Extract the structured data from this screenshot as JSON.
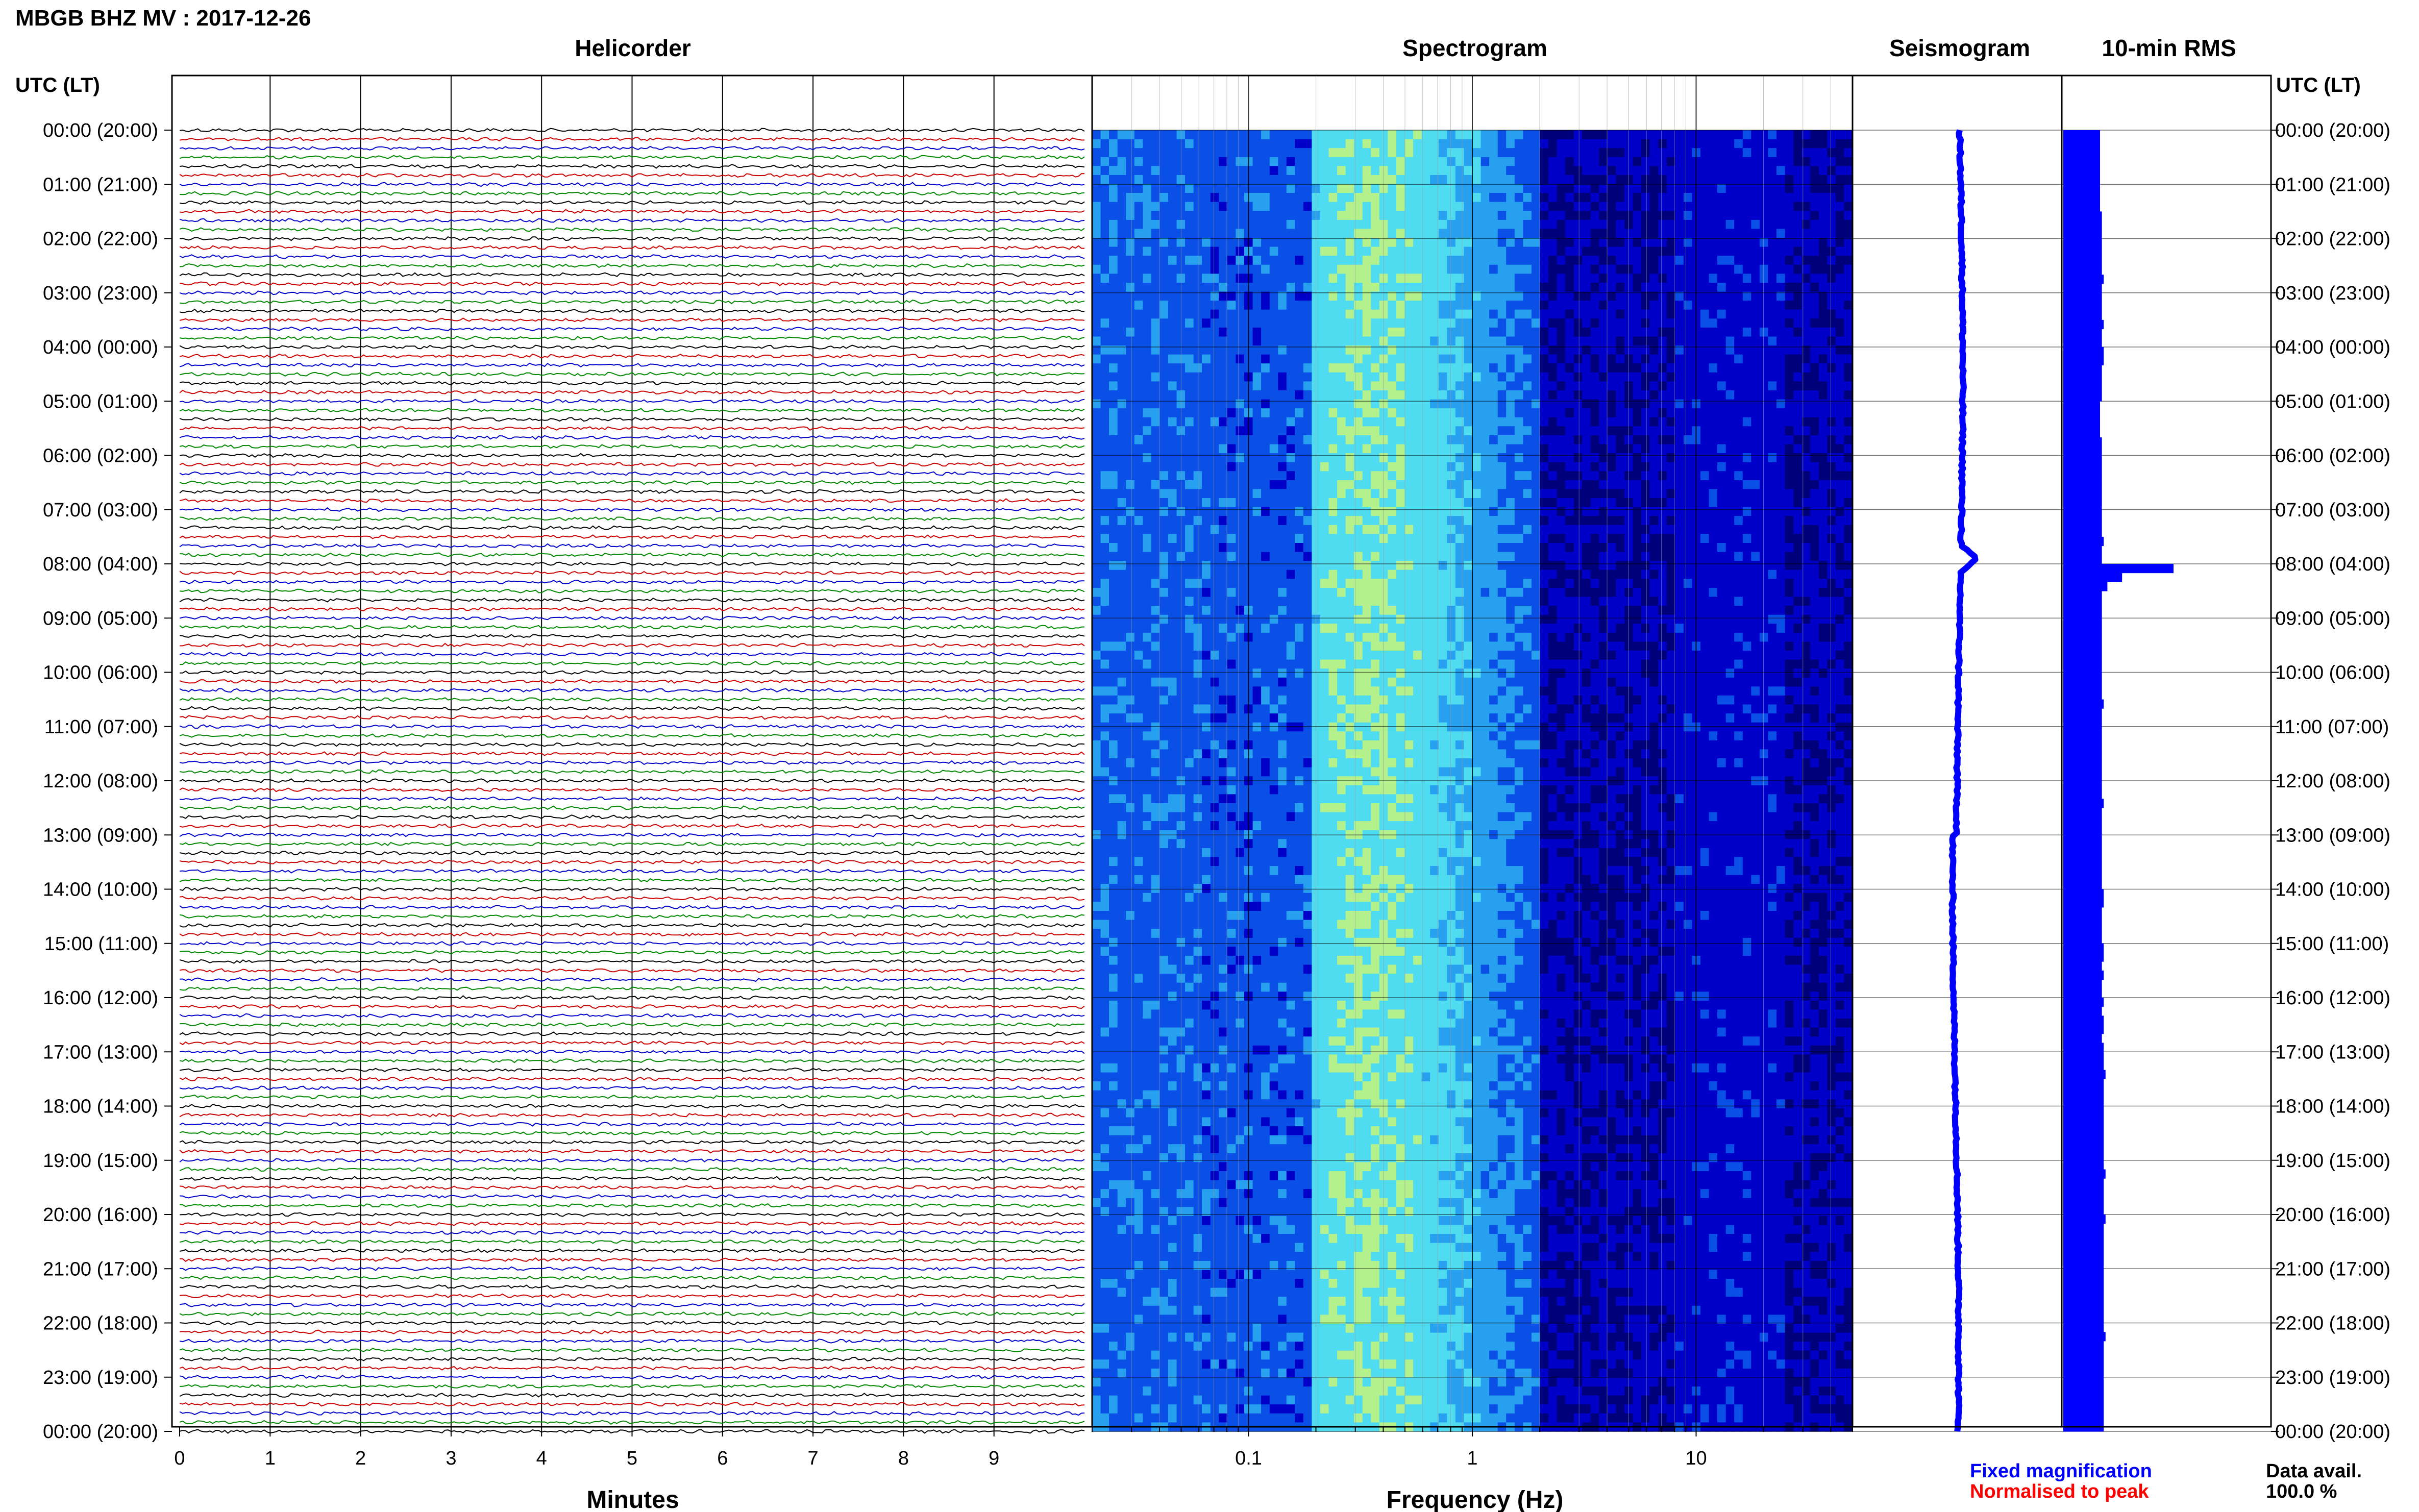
{
  "header": {
    "title": "MBGB BHZ MV : 2017-12-26",
    "left_axis_label": "UTC (LT)",
    "right_axis_label": "UTC (LT)"
  },
  "panels": {
    "helicorder": "Helicorder",
    "spectrogram": "Spectrogram",
    "seismogram": "Seismogram",
    "rms": "10-min RMS"
  },
  "footer": {
    "minutes_label": "Minutes",
    "frequency_label": "Frequency (Hz)",
    "legend_fixed": "Fixed magnification",
    "legend_normalised": "Normalised to peak",
    "data_avail_label": "Data avail.",
    "data_avail_value": "100.0 %"
  },
  "colors": {
    "trace_cycle": [
      "#000000",
      "#cc0000",
      "#0000cc",
      "#008800"
    ],
    "fixed": "#0000ff",
    "normalised": "#ff0000",
    "spectrogram_scale": [
      "#00007a",
      "#0000c8",
      "#0a50e6",
      "#28a0f0",
      "#50dcf0",
      "#b4f08c"
    ]
  },
  "chart_data": [
    {
      "type": "line",
      "title": "Helicorder",
      "xlabel": "Minutes",
      "x_ticks": [
        "0",
        "1",
        "2",
        "3",
        "4",
        "5",
        "6",
        "7",
        "8",
        "9"
      ],
      "xlim": [
        0,
        10
      ],
      "rows_per_hour": 6,
      "rows": 145,
      "y_ticks": [
        "00:00 (20:00)",
        "01:00 (21:00)",
        "02:00 (22:00)",
        "03:00 (23:00)",
        "04:00 (00:00)",
        "05:00 (01:00)",
        "06:00 (02:00)",
        "07:00 (03:00)",
        "08:00 (04:00)",
        "09:00 (05:00)",
        "10:00 (06:00)",
        "11:00 (07:00)",
        "12:00 (08:00)",
        "13:00 (09:00)",
        "14:00 (10:00)",
        "15:00 (11:00)",
        "16:00 (12:00)",
        "17:00 (13:00)",
        "18:00 (14:00)",
        "19:00 (15:00)",
        "20:00 (16:00)",
        "21:00 (17:00)",
        "22:00 (18:00)",
        "23:00 (19:00)",
        "00:00 (20:00)"
      ]
    },
    {
      "type": "heatmap",
      "title": "Spectrogram",
      "xlabel": "Frequency (Hz)",
      "x_scale": "log",
      "xlim": [
        0.02,
        50
      ],
      "x_ticks": [
        "0.1",
        "1",
        "10"
      ],
      "peak_band_hz": [
        0.2,
        0.8
      ]
    },
    {
      "type": "line",
      "title": "Seismogram",
      "note": "spike near 08:00 UTC"
    },
    {
      "type": "bar",
      "title": "10-min RMS",
      "orientation": "horizontal",
      "categories_per_hour": 6,
      "values": [
        1.0,
        1.0,
        1.0,
        1.0,
        1.0,
        1.0,
        1.0,
        1.0,
        1.0,
        1.05,
        1.05,
        1.05,
        1.05,
        1.05,
        1.05,
        1.05,
        1.1,
        1.05,
        1.05,
        1.05,
        1.05,
        1.1,
        1.05,
        1.05,
        1.1,
        1.1,
        1.05,
        1.05,
        1.05,
        1.05,
        1.0,
        1.0,
        1.0,
        1.0,
        1.05,
        1.05,
        1.05,
        1.05,
        1.05,
        1.05,
        1.05,
        1.05,
        1.05,
        1.05,
        1.05,
        1.1,
        1.05,
        1.05,
        3.0,
        1.6,
        1.2,
        1.05,
        1.05,
        1.05,
        1.05,
        1.05,
        1.05,
        1.05,
        1.05,
        1.05,
        1.05,
        1.05,
        1.05,
        1.1,
        1.05,
        1.05,
        1.05,
        1.05,
        1.05,
        1.05,
        1.05,
        1.05,
        1.05,
        1.05,
        1.1,
        1.05,
        1.05,
        1.05,
        1.05,
        1.05,
        1.05,
        1.05,
        1.05,
        1.05,
        1.1,
        1.1,
        1.05,
        1.05,
        1.05,
        1.05,
        1.1,
        1.1,
        1.05,
        1.1,
        1.05,
        1.05,
        1.1,
        1.05,
        1.1,
        1.1,
        1.05,
        1.1,
        1.1,
        1.1,
        1.15,
        1.1,
        1.1,
        1.1,
        1.1,
        1.1,
        1.1,
        1.1,
        1.1,
        1.1,
        1.1,
        1.15,
        1.1,
        1.1,
        1.1,
        1.1,
        1.15,
        1.1,
        1.1,
        1.1,
        1.1,
        1.1,
        1.1,
        1.1,
        1.1,
        1.1,
        1.1,
        1.1,
        1.1,
        1.15,
        1.1,
        1.1,
        1.1,
        1.1,
        1.1,
        1.1,
        1.1,
        1.1,
        1.1,
        1.1
      ]
    }
  ]
}
